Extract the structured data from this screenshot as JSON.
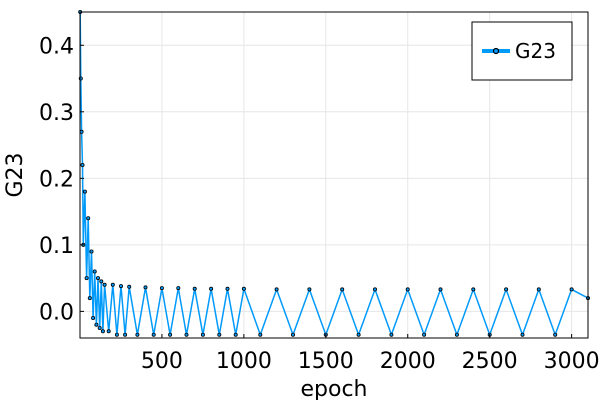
{
  "chart_data": {
    "type": "line",
    "title": "",
    "xlabel": "epoch",
    "ylabel": "G23",
    "xlim": [
      0,
      3100
    ],
    "ylim": [
      -0.04,
      0.45
    ],
    "x_ticks": [
      500,
      1000,
      1500,
      2000,
      2500,
      3000
    ],
    "y_ticks": [
      0.0,
      0.1,
      0.2,
      0.3,
      0.4
    ],
    "x_tick_labels": [
      "500",
      "1000",
      "1500",
      "2000",
      "2500",
      "3000"
    ],
    "y_tick_labels": [
      "0.0",
      "0.1",
      "0.2",
      "0.3",
      "0.4"
    ],
    "grid": true,
    "legend_position": "top-right",
    "colors": {
      "series": "#009AFA",
      "marker": "#000000",
      "grid": "#E6E6E6",
      "axis": "#000000"
    },
    "series": [
      {
        "name": "G23",
        "style": "line with small circle markers",
        "x": [
          1,
          5,
          10,
          15,
          20,
          30,
          40,
          50,
          60,
          70,
          80,
          90,
          100,
          110,
          120,
          130,
          140,
          150,
          175,
          200,
          225,
          250,
          275,
          300,
          350,
          400,
          450,
          500,
          550,
          600,
          650,
          700,
          750,
          800,
          850,
          900,
          950,
          1000,
          1100,
          1200,
          1300,
          1400,
          1500,
          1600,
          1700,
          1800,
          1900,
          2000,
          2100,
          2200,
          2300,
          2400,
          2500,
          2600,
          2700,
          2800,
          2900,
          3000,
          3100
        ],
        "values": [
          0.45,
          0.35,
          0.27,
          0.22,
          0.1,
          0.18,
          0.05,
          0.14,
          0.02,
          0.09,
          -0.01,
          0.06,
          -0.02,
          0.05,
          -0.025,
          0.045,
          -0.03,
          0.04,
          -0.03,
          0.04,
          -0.035,
          0.038,
          -0.035,
          0.037,
          -0.035,
          0.036,
          -0.035,
          0.035,
          -0.035,
          0.035,
          -0.035,
          0.034,
          -0.035,
          0.034,
          -0.035,
          0.034,
          -0.035,
          0.034,
          -0.035,
          0.033,
          -0.035,
          0.033,
          -0.035,
          0.033,
          -0.035,
          0.033,
          -0.035,
          0.033,
          -0.035,
          0.033,
          -0.035,
          0.033,
          -0.035,
          0.033,
          -0.035,
          0.033,
          -0.035,
          0.033,
          0.02
        ]
      }
    ]
  }
}
